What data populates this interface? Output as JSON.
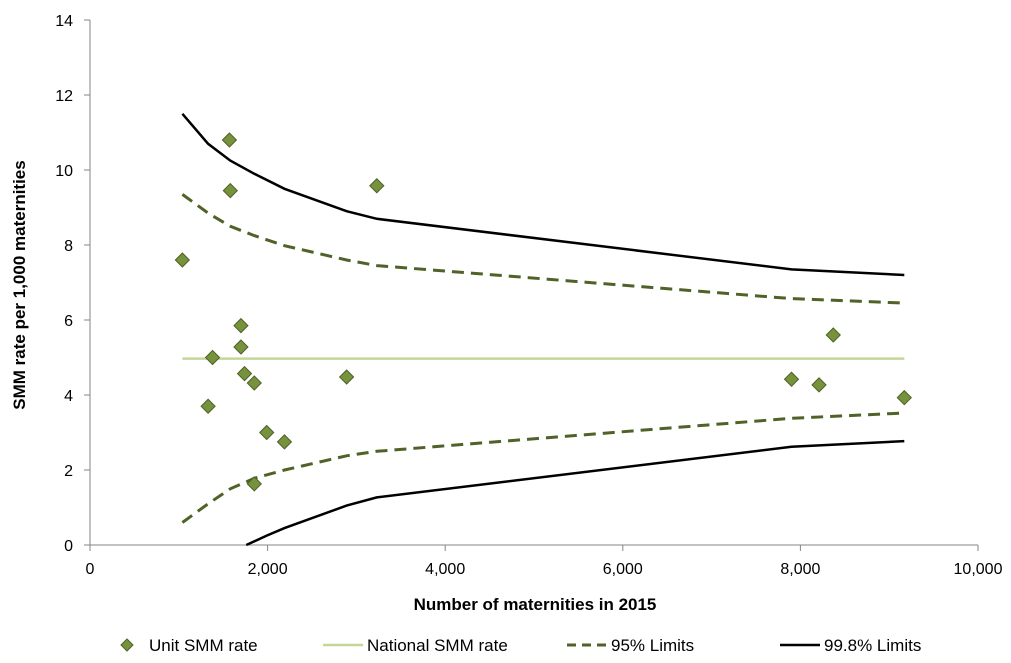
{
  "chart_data": {
    "type": "scatter",
    "title": "",
    "xlabel": "Number of maternities in 2015",
    "ylabel": "SMM rate per 1,000  maternities",
    "xlim": [
      0,
      10000
    ],
    "ylim": [
      0,
      14
    ],
    "x_ticks": [
      0,
      2000,
      4000,
      6000,
      8000,
      10000
    ],
    "x_tick_labels": [
      "0",
      "2,000",
      "4,000",
      "6,000",
      "8,000",
      "10,000"
    ],
    "y_ticks": [
      0,
      2,
      4,
      6,
      8,
      10,
      12,
      14
    ],
    "y_tick_labels": [
      "0",
      "2",
      "4",
      "6",
      "8",
      "10",
      "12",
      "14"
    ],
    "grid": false,
    "legend_position": "bottom",
    "series": [
      {
        "name": "Unit SMM rate",
        "kind": "scatter",
        "color": "#76923c",
        "points": [
          {
            "x": 1040,
            "y": 7.6
          },
          {
            "x": 1330,
            "y": 3.7
          },
          {
            "x": 1380,
            "y": 5.0
          },
          {
            "x": 1570,
            "y": 10.8
          },
          {
            "x": 1580,
            "y": 9.45
          },
          {
            "x": 1700,
            "y": 5.85
          },
          {
            "x": 1700,
            "y": 5.28
          },
          {
            "x": 1740,
            "y": 4.57
          },
          {
            "x": 1850,
            "y": 4.32
          },
          {
            "x": 1850,
            "y": 1.63
          },
          {
            "x": 1990,
            "y": 3.0
          },
          {
            "x": 2190,
            "y": 2.75
          },
          {
            "x": 2890,
            "y": 4.48
          },
          {
            "x": 3230,
            "y": 9.58
          },
          {
            "x": 7900,
            "y": 4.42
          },
          {
            "x": 8210,
            "y": 4.27
          },
          {
            "x": 8370,
            "y": 5.6
          },
          {
            "x": 9170,
            "y": 3.93
          }
        ]
      },
      {
        "name": "National SMM rate",
        "kind": "line",
        "style": "solid",
        "color": "#c4d79b",
        "points": [
          {
            "x": 1040,
            "y": 4.97
          },
          {
            "x": 9170,
            "y": 4.97
          }
        ]
      },
      {
        "name": "95%  Limits",
        "kind": "line",
        "style": "dashed",
        "color": "#4f6228",
        "upper": [
          {
            "x": 1040,
            "y": 9.35
          },
          {
            "x": 1330,
            "y": 8.85
          },
          {
            "x": 1580,
            "y": 8.5
          },
          {
            "x": 1850,
            "y": 8.25
          },
          {
            "x": 2190,
            "y": 7.98
          },
          {
            "x": 2890,
            "y": 7.6
          },
          {
            "x": 3230,
            "y": 7.45
          },
          {
            "x": 7900,
            "y": 6.57
          },
          {
            "x": 9170,
            "y": 6.45
          }
        ],
        "lower": [
          {
            "x": 1040,
            "y": 0.6
          },
          {
            "x": 1330,
            "y": 1.1
          },
          {
            "x": 1580,
            "y": 1.5
          },
          {
            "x": 1850,
            "y": 1.78
          },
          {
            "x": 2190,
            "y": 2.0
          },
          {
            "x": 2890,
            "y": 2.38
          },
          {
            "x": 3230,
            "y": 2.5
          },
          {
            "x": 7900,
            "y": 3.38
          },
          {
            "x": 9170,
            "y": 3.52
          }
        ]
      },
      {
        "name": "99.8% Limits",
        "kind": "line",
        "style": "solid",
        "color": "#000000",
        "upper": [
          {
            "x": 1040,
            "y": 11.5
          },
          {
            "x": 1330,
            "y": 10.7
          },
          {
            "x": 1580,
            "y": 10.25
          },
          {
            "x": 1850,
            "y": 9.9
          },
          {
            "x": 2190,
            "y": 9.5
          },
          {
            "x": 2890,
            "y": 8.9
          },
          {
            "x": 3230,
            "y": 8.7
          },
          {
            "x": 7900,
            "y": 7.35
          },
          {
            "x": 9170,
            "y": 7.2
          }
        ],
        "lower": [
          {
            "x": 1760,
            "y": 0.0
          },
          {
            "x": 1990,
            "y": 0.25
          },
          {
            "x": 2190,
            "y": 0.45
          },
          {
            "x": 2890,
            "y": 1.05
          },
          {
            "x": 3230,
            "y": 1.27
          },
          {
            "x": 7900,
            "y": 2.62
          },
          {
            "x": 9170,
            "y": 2.77
          }
        ]
      }
    ]
  }
}
